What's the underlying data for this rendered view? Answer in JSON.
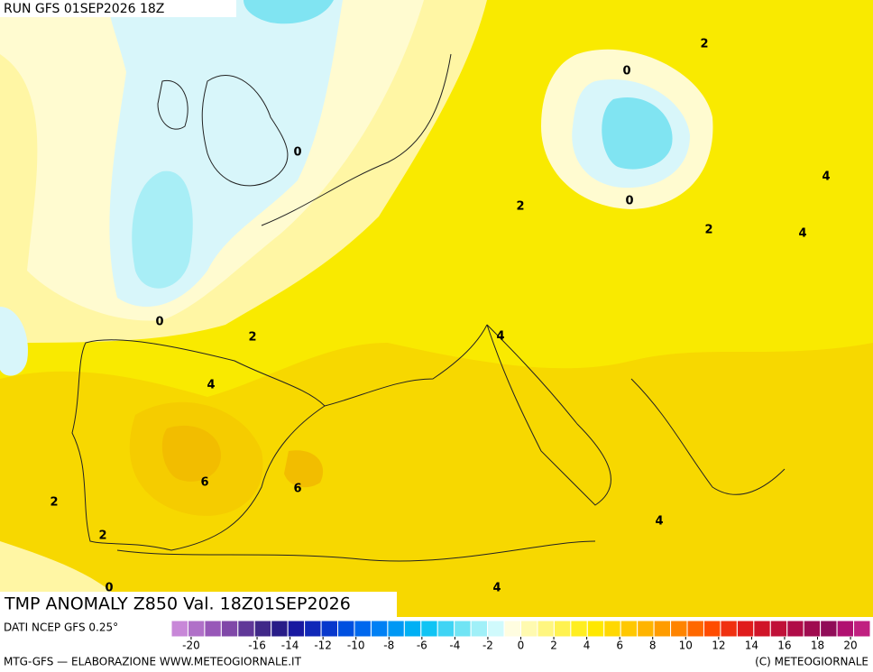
{
  "header": {
    "title": "RUN GFS 01SEP2026 18Z"
  },
  "map": {
    "contour_labels": [
      "0",
      "0",
      "2",
      "0",
      "2",
      "2",
      "4",
      "4",
      "0",
      "2",
      "4",
      "4",
      "6",
      "6",
      "2",
      "2",
      "4",
      "0",
      "4"
    ]
  },
  "footer": {
    "product": "TMP ANOMALY Z850 Val. 18Z01SEP2026",
    "source": "DATI NCEP GFS 0.25°",
    "credit": "MTG-GFS — ELABORAZIONE WWW.METEOGIORNALE.IT",
    "copyright": "(C) METEOGIORNALE"
  },
  "colorbar": {
    "lim": [
      -21.2,
      21.2
    ],
    "ticks": [
      -20,
      -16,
      -14,
      -12,
      -10,
      -8,
      -6,
      -4,
      -2,
      0,
      2,
      4,
      6,
      8,
      10,
      12,
      14,
      16,
      18,
      20
    ],
    "colors": [
      "#c887d8",
      "#b070c8",
      "#9858b8",
      "#8048a8",
      "#603898",
      "#402888",
      "#281c88",
      "#1818a0",
      "#1028b8",
      "#0838cc",
      "#0050e0",
      "#0068ee",
      "#0080f4",
      "#0098f4",
      "#00b0f4",
      "#10c4f4",
      "#40d4f4",
      "#70e4f4",
      "#a0f0f8",
      "#d0fafc",
      "#fffde0",
      "#fffab0",
      "#fff680",
      "#fff250",
      "#ffee20",
      "#ffe800",
      "#ffd800",
      "#ffc800",
      "#ffb400",
      "#ff9c00",
      "#ff8400",
      "#ff6800",
      "#ff4c00",
      "#f03010",
      "#e01c1c",
      "#d01428",
      "#c01038",
      "#b00c48",
      "#a00c50",
      "#900c58",
      "#b01070",
      "#c02080"
    ]
  }
}
